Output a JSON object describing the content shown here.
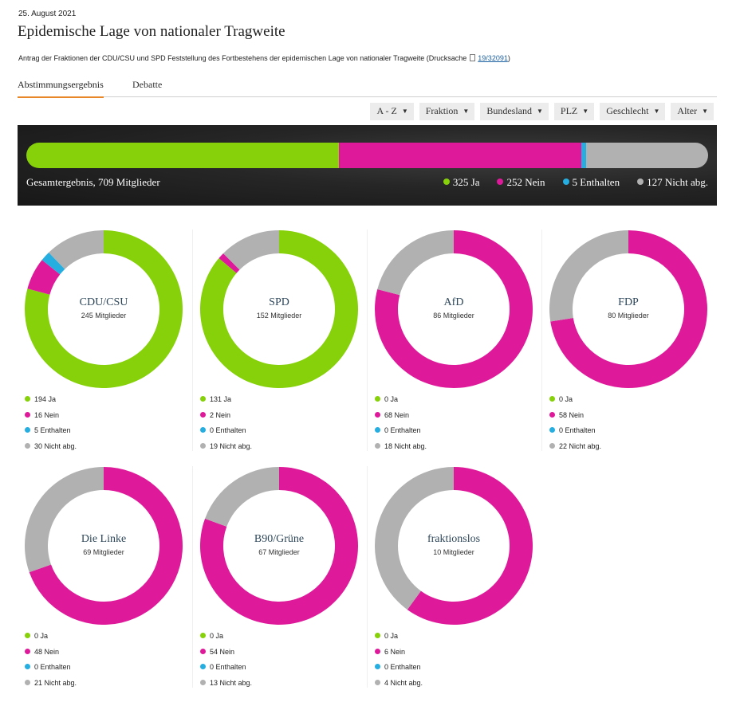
{
  "header": {
    "date": "25. August 2021",
    "title": "Epidemische Lage von nationaler Tragweite",
    "description": "Antrag der Fraktionen der CDU/CSU und SPD Feststellung des Fortbestehens der epidemischen Lage von nationaler Tragweite (Drucksache",
    "doc_link": "19/32091",
    "desc_close": ")"
  },
  "tabs": [
    {
      "label": "Abstimmungsergebnis",
      "active": true
    },
    {
      "label": "Debatte",
      "active": false
    }
  ],
  "filters": [
    "A - Z",
    "Fraktion",
    "Bundesland",
    "PLZ",
    "Geschlecht",
    "Alter"
  ],
  "colors": {
    "ja": "#86d10a",
    "nein": "#df1a9a",
    "enthalten": "#26aee0",
    "nicht": "#b1b1b1"
  },
  "total": {
    "label": "Gesamtergebnis, 709 Mitglieder",
    "ja": "325 Ja",
    "nein": "252 Nein",
    "enthalten": "5 Enthalten",
    "nicht": "127 Nicht abg."
  },
  "chart_data": {
    "type": "pie",
    "total": {
      "members": 709,
      "ja": 325,
      "nein": 252,
      "enthalten": 5,
      "nicht_abgegeben": 127
    },
    "categories": [
      "Ja",
      "Nein",
      "Enthalten",
      "Nicht abg."
    ],
    "factions": [
      {
        "name": "CDU/CSU",
        "members": 245,
        "values": [
          194,
          16,
          5,
          30
        ]
      },
      {
        "name": "SPD",
        "members": 152,
        "values": [
          131,
          2,
          0,
          19
        ]
      },
      {
        "name": "AfD",
        "members": 86,
        "values": [
          0,
          68,
          0,
          18
        ]
      },
      {
        "name": "FDP",
        "members": 80,
        "values": [
          0,
          58,
          0,
          22
        ]
      },
      {
        "name": "Die Linke",
        "members": 69,
        "values": [
          0,
          48,
          0,
          21
        ]
      },
      {
        "name": "B90/Grüne",
        "members": 67,
        "values": [
          0,
          54,
          0,
          13
        ]
      },
      {
        "name": "fraktionslos",
        "members": 10,
        "values": [
          0,
          6,
          0,
          4
        ]
      }
    ]
  },
  "cards": [
    {
      "name": "CDU/CSU",
      "members_label": "245 Mitglieder",
      "ja": "194 Ja",
      "nein": "16 Nein",
      "enthalten": "5 Enthalten",
      "nicht": "30 Nicht abg."
    },
    {
      "name": "SPD",
      "members_label": "152 Mitglieder",
      "ja": "131 Ja",
      "nein": "2 Nein",
      "enthalten": "0 Enthalten",
      "nicht": "19 Nicht abg."
    },
    {
      "name": "AfD",
      "members_label": "86 Mitglieder",
      "ja": "0 Ja",
      "nein": "68 Nein",
      "enthalten": "0 Enthalten",
      "nicht": "18 Nicht abg."
    },
    {
      "name": "FDP",
      "members_label": "80 Mitglieder",
      "ja": "0 Ja",
      "nein": "58 Nein",
      "enthalten": "0 Enthalten",
      "nicht": "22 Nicht abg."
    },
    {
      "name": "Die Linke",
      "members_label": "69 Mitglieder",
      "ja": "0 Ja",
      "nein": "48 Nein",
      "enthalten": "0 Enthalten",
      "nicht": "21 Nicht abg."
    },
    {
      "name": "B90/Grüne",
      "members_label": "67 Mitglieder",
      "ja": "0 Ja",
      "nein": "54 Nein",
      "enthalten": "0 Enthalten",
      "nicht": "13 Nicht abg."
    },
    {
      "name": "fraktionslos",
      "members_label": "10 Mitglieder",
      "ja": "0 Ja",
      "nein": "6 Nein",
      "enthalten": "0 Enthalten",
      "nicht": "4 Nicht abg."
    }
  ]
}
